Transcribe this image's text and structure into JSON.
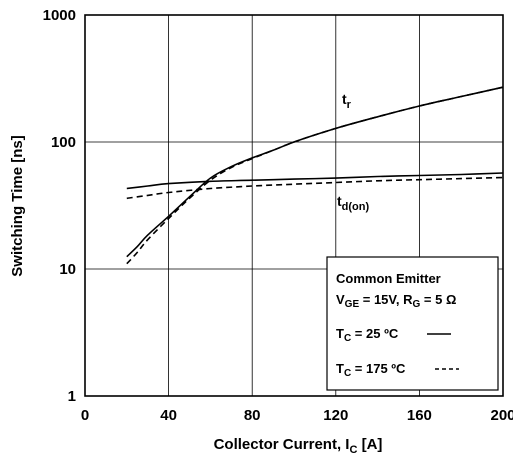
{
  "chart_data": {
    "type": "line",
    "xlabel": {
      "main": "Collector Current, I",
      "sub": "C",
      "suffix": " [A]"
    },
    "ylabel": "Switching Time [ns]",
    "xlim": [
      0,
      200
    ],
    "ylim": [
      1,
      1000
    ],
    "y_scale": "log",
    "x_ticks": [
      0,
      40,
      80,
      120,
      160,
      200
    ],
    "y_ticks": [
      1,
      10,
      100,
      1000
    ],
    "x_tick_labels": [
      "0",
      "40",
      "80",
      "120",
      "160",
      "200"
    ],
    "y_tick_labels": [
      "1",
      "10",
      "100",
      "1000"
    ],
    "grid": true,
    "curve_labels": {
      "tr": {
        "main": "t",
        "sub": "r"
      },
      "tdon": {
        "main": "t",
        "sub": "d(on)"
      }
    },
    "series": [
      {
        "curve": "tr",
        "style": "solid",
        "x": [
          20,
          25,
          30,
          40,
          50,
          60,
          70,
          80,
          90,
          100,
          120,
          140,
          160,
          180,
          200
        ],
        "y": [
          12.5,
          15,
          18.5,
          26,
          37,
          52,
          64,
          75,
          86,
          100,
          128,
          158,
          192,
          228,
          270
        ]
      },
      {
        "curve": "tr",
        "style": "dashed",
        "x": [
          20,
          25,
          30,
          40,
          50,
          60,
          70,
          80,
          90,
          100,
          120,
          140,
          160,
          180,
          200
        ],
        "y": [
          11,
          13.5,
          17,
          25,
          36,
          50,
          63,
          74,
          86,
          100,
          128,
          158,
          192,
          228,
          270
        ]
      },
      {
        "curve": "tdon",
        "style": "solid",
        "x": [
          20,
          30,
          40,
          60,
          80,
          100,
          120,
          140,
          160,
          180,
          200
        ],
        "y": [
          43,
          45,
          47,
          49,
          50,
          51,
          52,
          53.5,
          54.5,
          55.5,
          57
        ]
      },
      {
        "curve": "tdon",
        "style": "dashed",
        "x": [
          20,
          30,
          40,
          60,
          80,
          100,
          120,
          140,
          160,
          180,
          200
        ],
        "y": [
          36,
          38,
          40,
          43,
          45,
          46.5,
          48,
          49.5,
          50.5,
          51.5,
          52.5
        ]
      }
    ],
    "legend": {
      "placement": "bottom-right",
      "title": "Common Emitter",
      "condition": {
        "v": "V",
        "v_sub": "GE",
        "v_val": " = 15V, R",
        "r_sub": "G",
        "r_val": " = 5 Ω"
      },
      "entries": [
        {
          "style": "solid",
          "t": "T",
          "sub": "C",
          "text": " = 25 ºC"
        },
        {
          "style": "dashed",
          "t": "T",
          "sub": "C",
          "text": " = 175 ºC"
        }
      ]
    }
  }
}
